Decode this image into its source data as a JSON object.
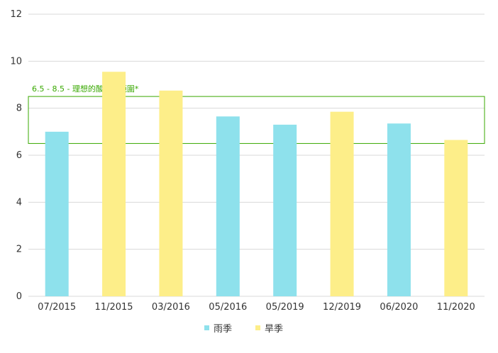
{
  "chart_data": {
    "type": "bar",
    "categories": [
      "07/2015",
      "11/2015",
      "03/2016",
      "05/2016",
      "05/2019",
      "12/2019",
      "06/2020",
      "11/2020"
    ],
    "values": [
      7.0,
      9.55,
      8.75,
      7.65,
      7.3,
      7.85,
      7.35,
      6.65
    ],
    "season": [
      "rain",
      "dry",
      "dry",
      "rain",
      "rain",
      "dry",
      "rain",
      "dry"
    ],
    "ylim": [
      0,
      12
    ],
    "yticks": [
      0,
      2,
      4,
      6,
      8,
      10,
      12
    ],
    "grid": true,
    "band": {
      "from": 6.5,
      "to": 8.5,
      "label": "6.5 - 8.5 - 理想的酸鹼值範圍*",
      "color": "#38a800"
    },
    "legend": {
      "placement": "bottom-center",
      "items": [
        {
          "key": "rain",
          "label": "雨季",
          "color": "#8ee1ec"
        },
        {
          "key": "dry",
          "label": "旱季",
          "color": "#fdee89"
        }
      ]
    }
  }
}
